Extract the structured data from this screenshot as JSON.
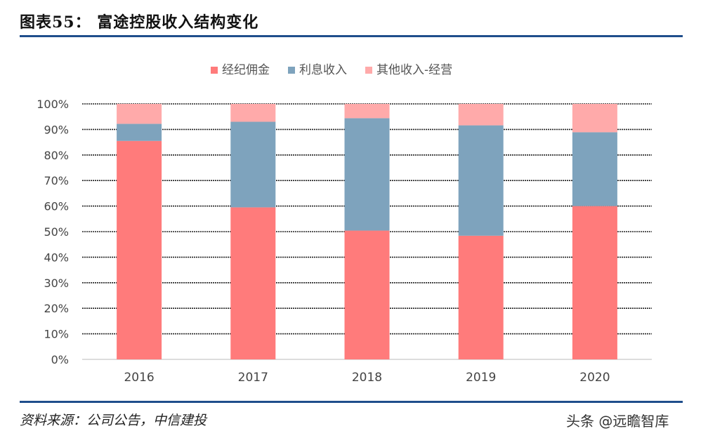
{
  "title": "图表55：  富途控股收入结构变化",
  "source": "资料来源：公司公告，中信建投",
  "watermark": "头条 @远瞻智库",
  "chart_data": {
    "type": "bar",
    "stacked": true,
    "percent": true,
    "categories": [
      "2016",
      "2017",
      "2018",
      "2019",
      "2020"
    ],
    "series": [
      {
        "name": "经纪佣金",
        "color": "#ff7b7b",
        "values": [
          85.5,
          59.5,
          50.4,
          48.4,
          60.0
        ]
      },
      {
        "name": "利息收入",
        "color": "#7ea3bd",
        "values": [
          6.7,
          33.5,
          44.0,
          43.2,
          28.9
        ]
      },
      {
        "name": "其他收入-经营",
        "color": "#ffaaaa",
        "values": [
          7.8,
          7.0,
          5.6,
          8.4,
          11.1
        ]
      }
    ],
    "yticks": [
      "0%",
      "10%",
      "20%",
      "30%",
      "40%",
      "50%",
      "60%",
      "70%",
      "80%",
      "90%",
      "100%"
    ],
    "ylim": [
      0,
      100
    ],
    "grid": true,
    "legend": "top"
  }
}
